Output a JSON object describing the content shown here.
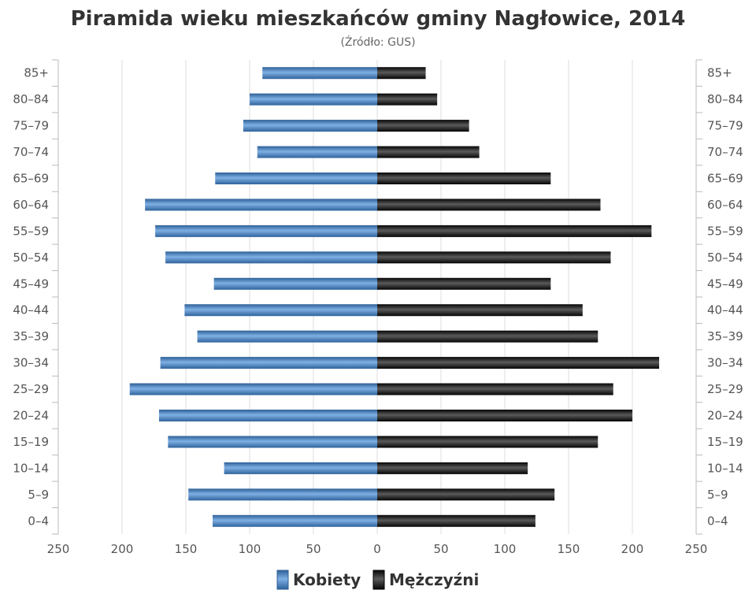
{
  "chart_data": {
    "type": "bar",
    "orientation": "horizontal",
    "title": "Piramida wieku mieszkańców gminy Nagłowice, 2014",
    "subtitle": "(Źródło: GUS)",
    "categories": [
      "85+",
      "80–84",
      "75–79",
      "70–74",
      "65–69",
      "60–64",
      "55–59",
      "50–54",
      "45–49",
      "40–44",
      "35–39",
      "30–34",
      "25–29",
      "20–24",
      "15–19",
      "10–14",
      "5–9",
      "0–4"
    ],
    "series": [
      {
        "name": "Kobiety",
        "color": "#4a86c5",
        "values": [
          90,
          100,
          105,
          94,
          127,
          182,
          174,
          166,
          128,
          151,
          141,
          170,
          194,
          171,
          164,
          120,
          148,
          129
        ]
      },
      {
        "name": "Mężczyźni",
        "color": "#111111",
        "values": [
          38,
          47,
          72,
          80,
          136,
          175,
          215,
          183,
          136,
          161,
          173,
          221,
          185,
          200,
          173,
          118,
          139,
          124
        ]
      }
    ],
    "xlim": [
      -250,
      250
    ],
    "xticks": [
      -250,
      -200,
      -150,
      -100,
      -50,
      0,
      50,
      100,
      150,
      200,
      250
    ],
    "xtick_labels": [
      "250",
      "200",
      "150",
      "100",
      "50",
      "0",
      "50",
      "100",
      "150",
      "200",
      "250"
    ],
    "grid": true,
    "legend": "bottom-center"
  }
}
